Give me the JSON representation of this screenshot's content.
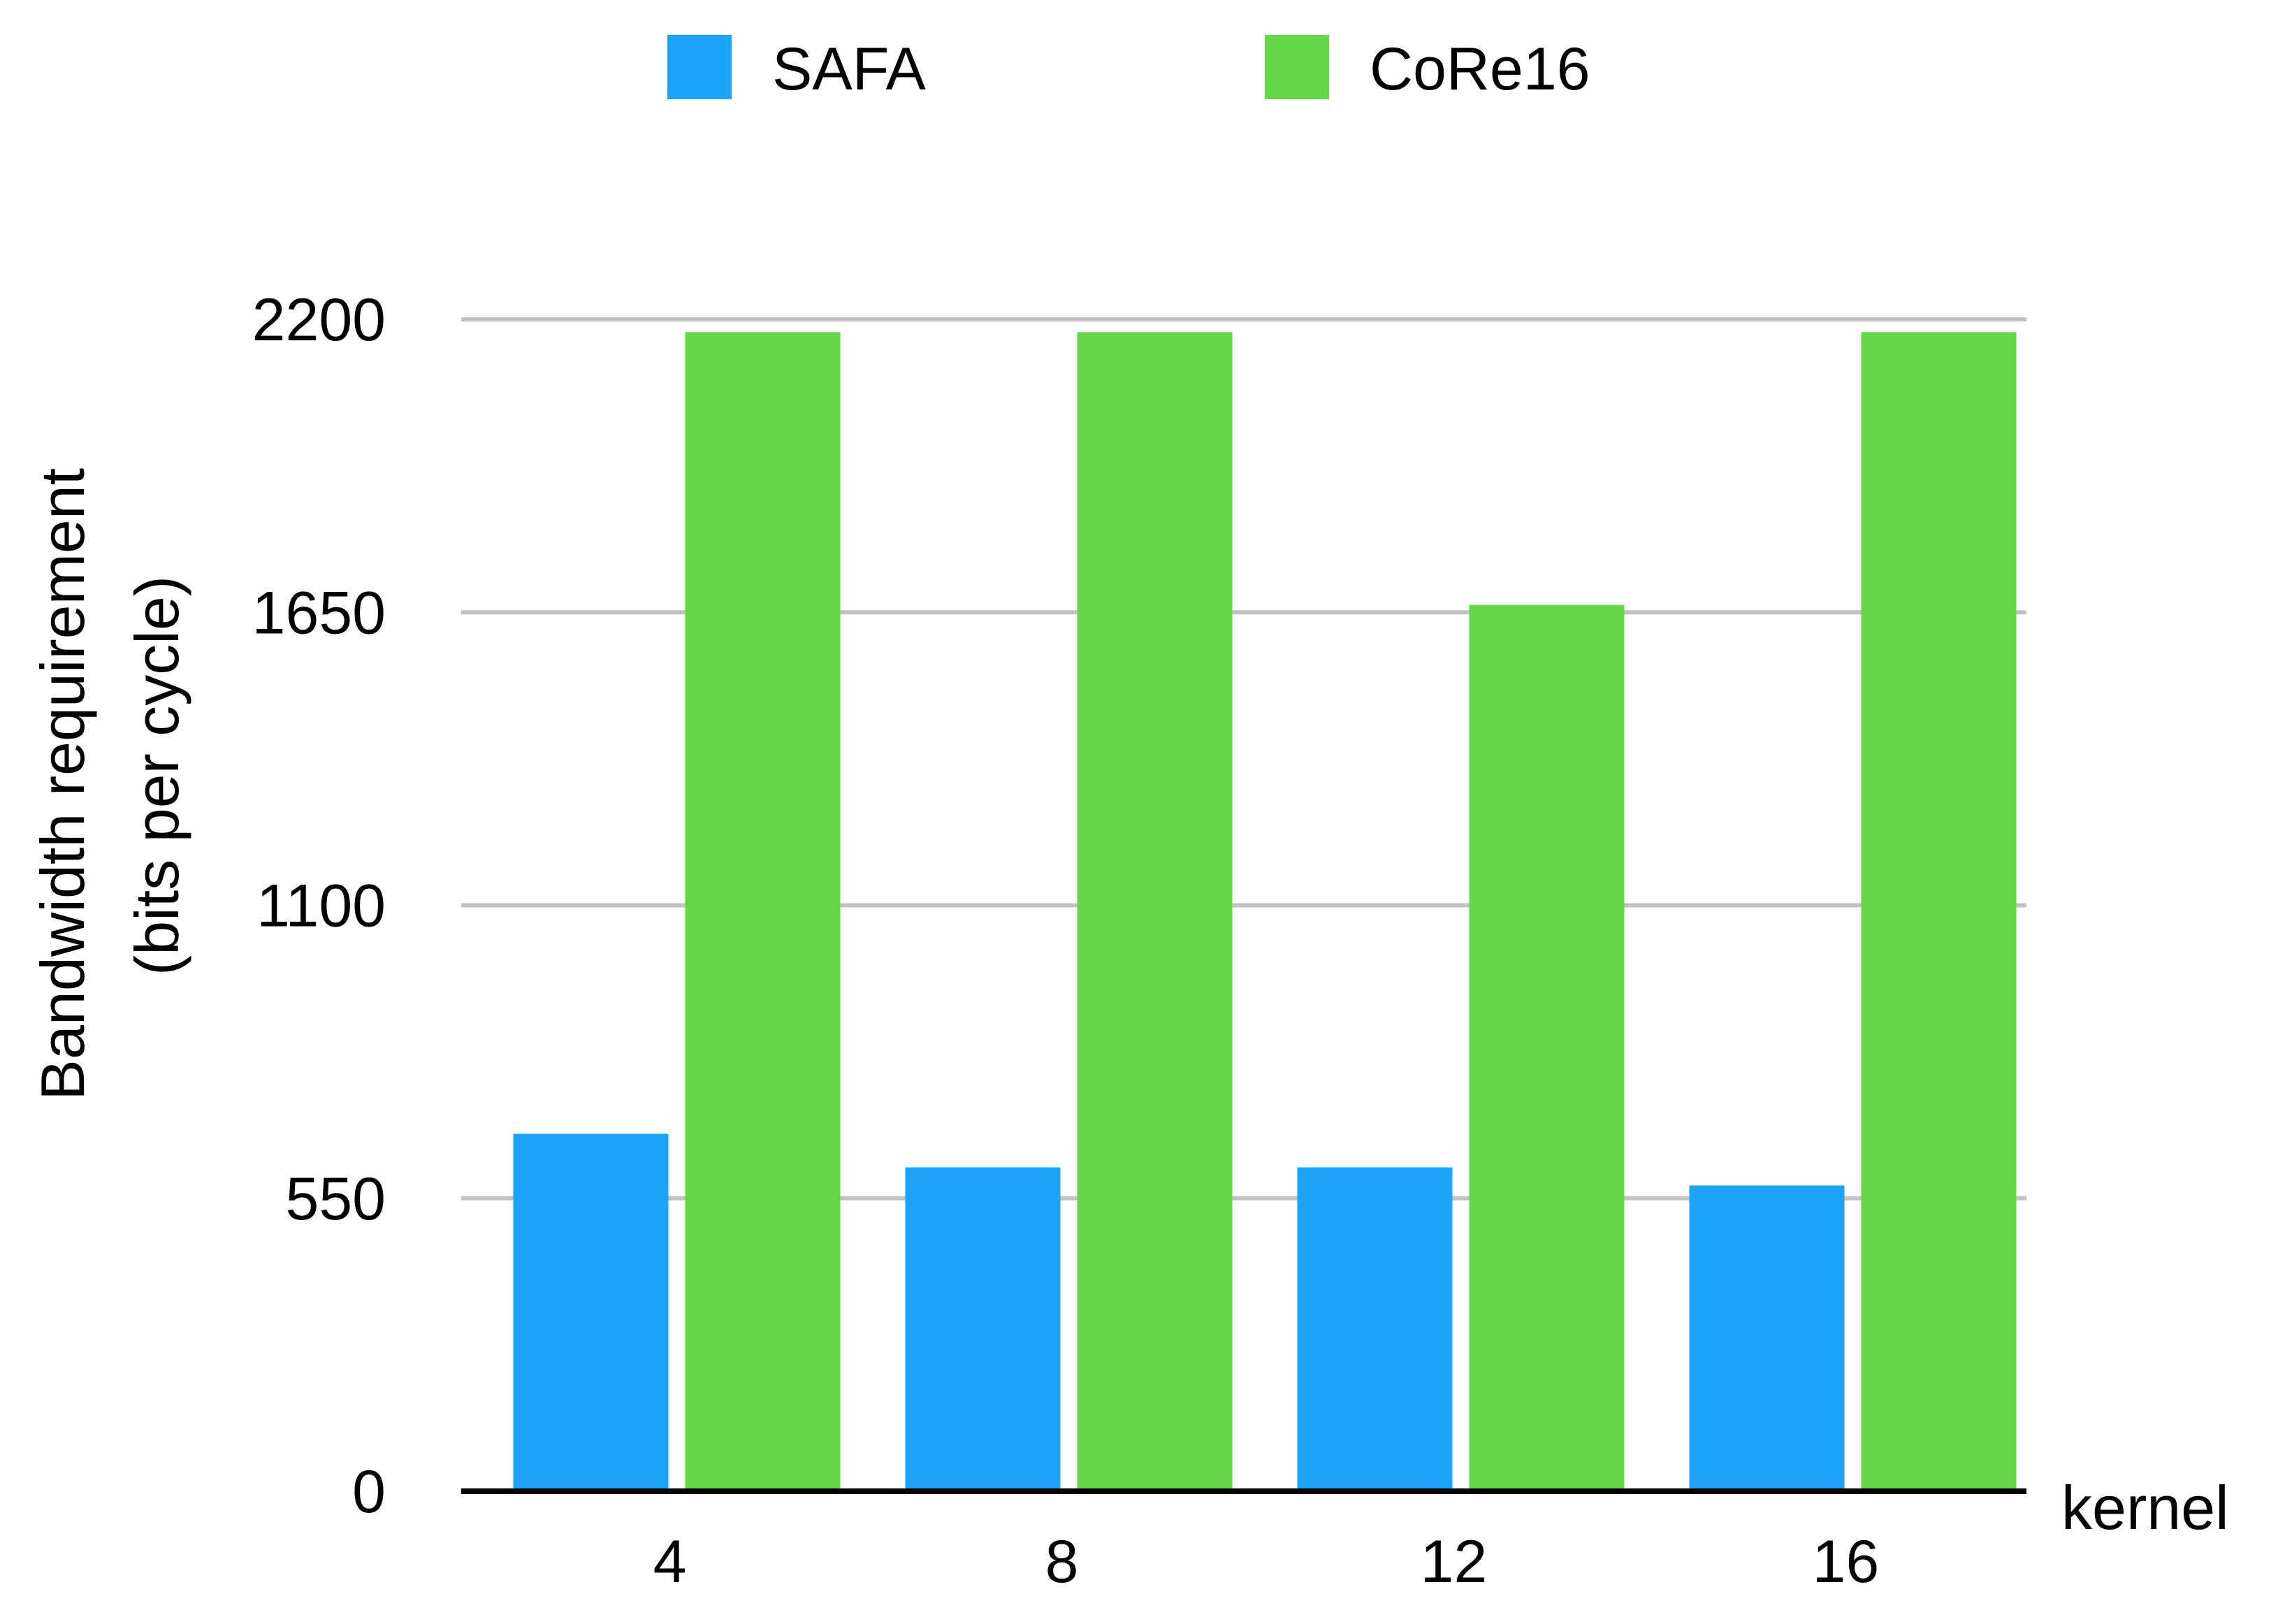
{
  "chart_data": {
    "type": "bar",
    "title": "",
    "xlabel": "kernel",
    "ylabel_lines": [
      "Bandwidth requirement",
      "(bits per cycle)"
    ],
    "categories": [
      "4",
      "8",
      "12",
      "16"
    ],
    "series": [
      {
        "name": "SAFA",
        "color": "#1ea3fb",
        "values": [
          671,
          608,
          608,
          574
        ]
      },
      {
        "name": "CoRe16",
        "color": "#64d748",
        "values": [
          2176,
          2176,
          1664,
          2176
        ]
      }
    ],
    "ylim": [
      0,
      2200
    ],
    "yticks": [
      "0",
      "550",
      "1100",
      "1650",
      "2200"
    ],
    "ytick_values": [
      0,
      550,
      1100,
      1650,
      2200
    ],
    "grid": true,
    "grid_color": "#c2c2c2",
    "axis_color": "#000000",
    "legend_position": "top-center"
  }
}
